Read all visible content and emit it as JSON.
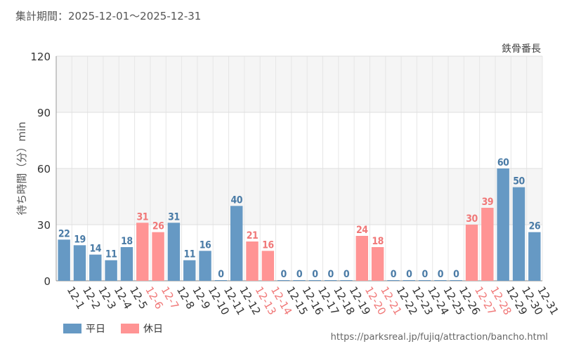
{
  "header": {
    "period_label": "集計期間：2025-12-01～2025-12-31",
    "attraction_name": "鉄骨番長",
    "source_url": "https://parksreal.jp/fujiq/attraction/bancho.html"
  },
  "legend": {
    "weekday_label": "平日",
    "holiday_label": "休日"
  },
  "colors": {
    "weekday": "#6699c4",
    "holiday": "#ff9494",
    "weekday_label": "#4a7ba6",
    "holiday_label": "#f07878"
  },
  "chart_data": {
    "type": "bar",
    "title": "",
    "ylabel": "待ち時間（分）min",
    "xlabel": "",
    "ylim": [
      0,
      120
    ],
    "yticks": [
      0,
      30,
      60,
      90,
      120
    ],
    "categories": [
      "12-1",
      "12-2",
      "12-3",
      "12-4",
      "12-5",
      "12-6",
      "12-7",
      "12-8",
      "12-9",
      "12-10",
      "12-11",
      "12-12",
      "12-13",
      "12-14",
      "12-15",
      "12-16",
      "12-17",
      "12-18",
      "12-19",
      "12-20",
      "12-21",
      "12-22",
      "12-23",
      "12-24",
      "12-25",
      "12-26",
      "12-27",
      "12-28",
      "12-29",
      "12-30",
      "12-31"
    ],
    "values": [
      22,
      19,
      14,
      11,
      18,
      31,
      26,
      31,
      11,
      16,
      0,
      40,
      21,
      16,
      0,
      0,
      0,
      0,
      0,
      24,
      18,
      0,
      0,
      0,
      0,
      0,
      30,
      39,
      60,
      50,
      26
    ],
    "day_type": [
      "weekday",
      "weekday",
      "weekday",
      "weekday",
      "weekday",
      "holiday",
      "holiday",
      "weekday",
      "weekday",
      "weekday",
      "weekday",
      "weekday",
      "holiday",
      "holiday",
      "weekday",
      "weekday",
      "weekday",
      "weekday",
      "weekday",
      "holiday",
      "holiday",
      "weekday",
      "weekday",
      "weekday",
      "weekday",
      "weekday",
      "holiday",
      "holiday",
      "weekday",
      "weekday",
      "weekday"
    ]
  }
}
